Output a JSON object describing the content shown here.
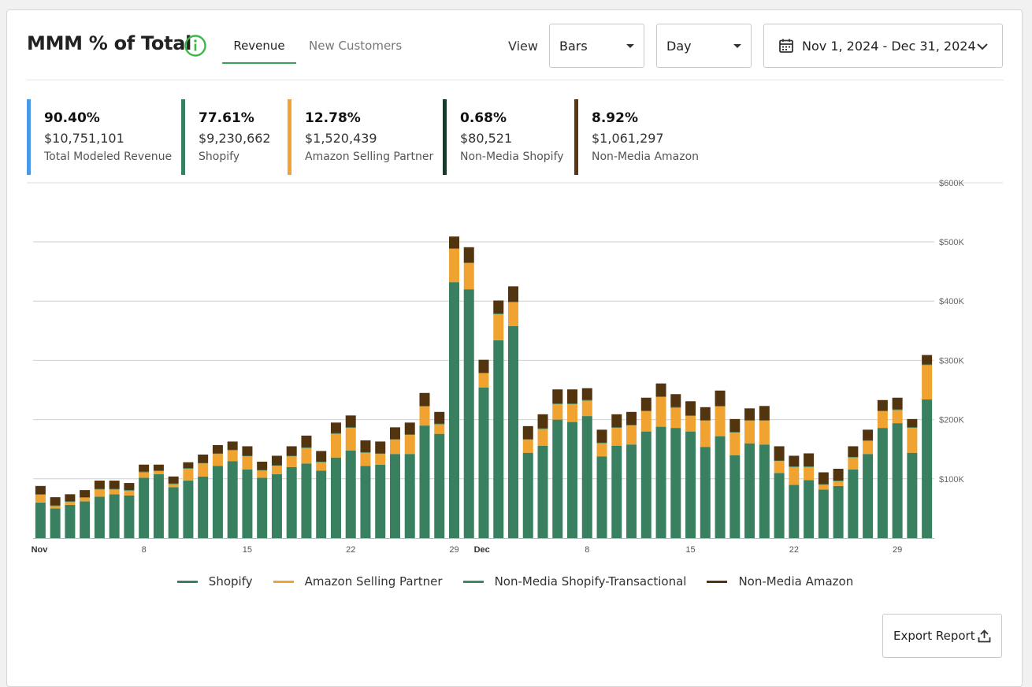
{
  "header": {
    "title": "MMM % of Total",
    "tabs": [
      "Revenue",
      "New Customers"
    ],
    "view_label": "View",
    "view_select": "Bars",
    "granularity_select": "Day",
    "date_range": "Nov 1, 2024 - Dec 31, 2024"
  },
  "kpis": [
    {
      "pct": "90.40%",
      "amount": "$10,751,101",
      "label": "Total Modeled Revenue",
      "color": "#4a98e8"
    },
    {
      "pct": "77.61%",
      "amount": "$9,230,662",
      "label": "Shopify",
      "color": "#38805f"
    },
    {
      "pct": "12.78%",
      "amount": "$1,520,439",
      "label": "Amazon Selling Partner",
      "color": "#f0a330"
    },
    {
      "pct": "0.68%",
      "amount": "$80,521",
      "label": "Non-Media Shopify",
      "color": "#173a2b"
    },
    {
      "pct": "8.92%",
      "amount": "$1,061,297",
      "label": "Non-Media Amazon",
      "color": "#5a3614"
    }
  ],
  "chart_data": {
    "type": "bar",
    "stacked": true,
    "x_ticks": [
      "Nov",
      "8",
      "15",
      "22",
      "29",
      "Dec",
      "8",
      "15",
      "22",
      "29"
    ],
    "y_ticks": [
      "$100K",
      "$200K",
      "$300K",
      "$400K",
      "$500K",
      "$600K"
    ],
    "ylim": [
      0,
      600000
    ],
    "grid": true,
    "categories": [
      "Nov 1",
      "Nov 2",
      "Nov 3",
      "Nov 4",
      "Nov 5",
      "Nov 6",
      "Nov 7",
      "Nov 8",
      "Nov 9",
      "Nov 10",
      "Nov 11",
      "Nov 12",
      "Nov 13",
      "Nov 14",
      "Nov 15",
      "Nov 16",
      "Nov 17",
      "Nov 18",
      "Nov 19",
      "Nov 20",
      "Nov 21",
      "Nov 22",
      "Nov 23",
      "Nov 24",
      "Nov 25",
      "Nov 26",
      "Nov 27",
      "Nov 28",
      "Nov 29",
      "Nov 30",
      "Dec 1",
      "Dec 2",
      "Dec 3",
      "Dec 4",
      "Dec 5",
      "Dec 6",
      "Dec 7",
      "Dec 8",
      "Dec 9",
      "Dec 10",
      "Dec 11",
      "Dec 12",
      "Dec 13",
      "Dec 14",
      "Dec 15",
      "Dec 16",
      "Dec 17",
      "Dec 18",
      "Dec 19",
      "Dec 20",
      "Dec 21",
      "Dec 22",
      "Dec 23",
      "Dec 24",
      "Dec 25",
      "Dec 26",
      "Dec 27",
      "Dec 28",
      "Dec 29",
      "Dec 30",
      "Dec 31"
    ],
    "series": [
      {
        "name": "Shopify",
        "color": "#38805f",
        "values": [
          60000,
          50000,
          56000,
          62000,
          70000,
          74000,
          72000,
          102000,
          108000,
          86000,
          97000,
          104000,
          122000,
          130000,
          116000,
          102000,
          108000,
          120000,
          126000,
          114000,
          136000,
          148000,
          122000,
          124000,
          142000,
          142000,
          190000,
          176000,
          432000,
          420000,
          254000,
          334000,
          358000,
          144000,
          156000,
          200000,
          196000,
          206000,
          138000,
          156000,
          158000,
          180000,
          188000,
          186000,
          180000,
          154000,
          172000,
          140000,
          160000,
          158000,
          110000,
          90000,
          98000,
          82000,
          88000,
          116000,
          142000,
          186000,
          194000,
          144000,
          234000
        ]
      },
      {
        "name": "Amazon Selling Partner",
        "color": "#f0a330",
        "values": [
          13000,
          4000,
          5000,
          6000,
          12000,
          8000,
          8000,
          9000,
          5000,
          5000,
          20000,
          22000,
          20000,
          18000,
          22000,
          12000,
          14000,
          18000,
          26000,
          14000,
          40000,
          38000,
          22000,
          18000,
          24000,
          32000,
          32000,
          16000,
          56000,
          44000,
          24000,
          44000,
          40000,
          22000,
          28000,
          26000,
          30000,
          26000,
          22000,
          30000,
          32000,
          34000,
          50000,
          34000,
          26000,
          44000,
          50000,
          38000,
          38000,
          40000,
          20000,
          30000,
          22000,
          8000,
          8000,
          20000,
          22000,
          28000,
          22000,
          42000,
          58000
        ]
      },
      {
        "name": "Non-Media Shopify-Transactional",
        "color": "#3a8a62",
        "values": [
          1000,
          1000,
          1000,
          1000,
          1000,
          1000,
          1000,
          1000,
          1000,
          1000,
          1000,
          1000,
          1000,
          1000,
          1000,
          1000,
          1000,
          1000,
          1000,
          1000,
          1000,
          1000,
          1000,
          1000,
          1000,
          1000,
          1000,
          1000,
          1000,
          1000,
          1000,
          1000,
          1000,
          1000,
          1000,
          1000,
          1000,
          1000,
          1000,
          1000,
          1000,
          1000,
          1000,
          1000,
          1000,
          1000,
          1000,
          1000,
          1000,
          1000,
          1000,
          1000,
          1000,
          1000,
          1000,
          1000,
          1000,
          1000,
          1000,
          1000,
          1000
        ]
      },
      {
        "name": "Non-Media Amazon",
        "color": "#52340f",
        "values": [
          14000,
          14000,
          12000,
          12000,
          14000,
          14000,
          12000,
          12000,
          10000,
          12000,
          10000,
          14000,
          14000,
          14000,
          16000,
          14000,
          16000,
          16000,
          20000,
          18000,
          18000,
          20000,
          20000,
          20000,
          20000,
          20000,
          22000,
          20000,
          20000,
          26000,
          22000,
          22000,
          26000,
          22000,
          24000,
          24000,
          24000,
          20000,
          22000,
          22000,
          22000,
          22000,
          22000,
          22000,
          24000,
          22000,
          26000,
          22000,
          20000,
          24000,
          24000,
          18000,
          22000,
          20000,
          20000,
          18000,
          18000,
          18000,
          20000,
          14000,
          16000
        ]
      }
    ]
  },
  "legend": [
    {
      "name": "Shopify",
      "color": "#38805f"
    },
    {
      "name": "Amazon Selling Partner",
      "color": "#f0a330"
    },
    {
      "name": "Non-Media Shopify-Transactional",
      "color": "#3a8a62"
    },
    {
      "name": "Non-Media Amazon",
      "color": "#52340f"
    }
  ],
  "footer": {
    "export_label": "Export Report"
  }
}
